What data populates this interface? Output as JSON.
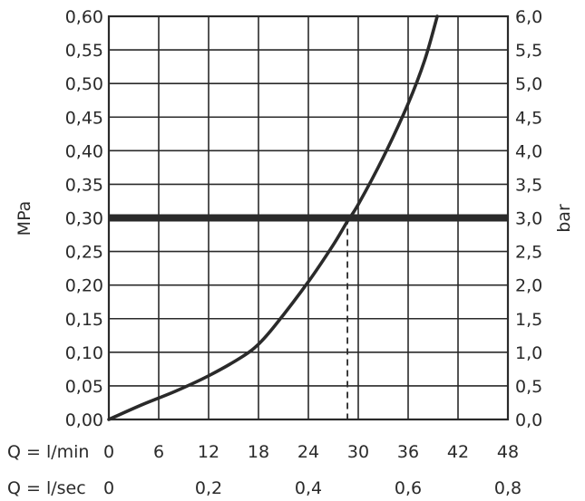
{
  "chart_data": {
    "type": "line",
    "xlabel": "Q = l/min",
    "x2label": "Q = l/sec",
    "ylabel": "MPa",
    "y2label": "bar",
    "xlim": [
      0,
      48
    ],
    "ylim": [
      0,
      0.6
    ],
    "x_ticks": [
      "0",
      "6",
      "12",
      "18",
      "24",
      "30",
      "36",
      "42",
      "48"
    ],
    "x_tick_values": [
      0,
      6,
      12,
      18,
      24,
      30,
      36,
      42,
      48
    ],
    "x2_ticks": [
      "0",
      "0,2",
      "0,4",
      "0,6",
      "0,8"
    ],
    "x2_tick_values_lmin": [
      0,
      12,
      24,
      36,
      48
    ],
    "y_ticks": [
      "0,00",
      "0,05",
      "0,10",
      "0,15",
      "0,20",
      "0,25",
      "0,30",
      "0,35",
      "0,40",
      "0,45",
      "0,50",
      "0,55",
      "0,60"
    ],
    "y_tick_values": [
      0,
      0.05,
      0.1,
      0.15,
      0.2,
      0.25,
      0.3,
      0.35,
      0.4,
      0.45,
      0.5,
      0.55,
      0.6
    ],
    "y2_ticks": [
      "0,0",
      "0,5",
      "1,0",
      "1,5",
      "2,0",
      "2,5",
      "3,0",
      "3,5",
      "4,0",
      "4,5",
      "5,0",
      "5,5",
      "6,0"
    ],
    "grid": true,
    "series": [
      {
        "x": [
          0,
          4,
          8,
          12,
          16,
          18,
          20,
          24,
          27,
          28.7,
          30,
          33,
          36,
          38,
          39.5
        ],
        "y": [
          0,
          0.022,
          0.042,
          0.065,
          0.093,
          0.112,
          0.14,
          0.205,
          0.26,
          0.295,
          0.32,
          0.39,
          0.47,
          0.535,
          0.6
        ]
      }
    ],
    "reference_line_y": 0.3,
    "reference_drop_x": 28.7
  }
}
